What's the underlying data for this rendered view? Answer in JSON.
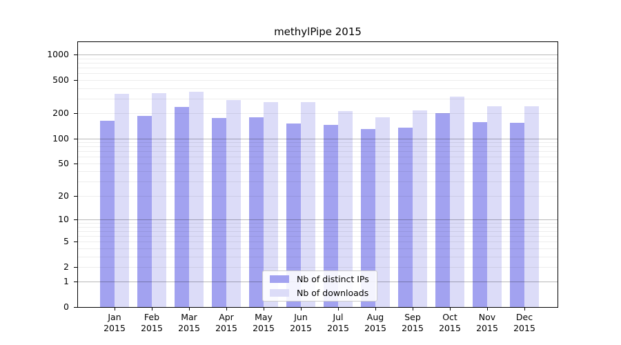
{
  "title": "methylPipe 2015",
  "colors": {
    "background": "#ffffff",
    "spine": "#000000",
    "text": "#000000",
    "ips_bar": "#a2a2f0",
    "downloads_bar": "#dcdcf8",
    "major_grid": "rgba(0,0,0,0.28)",
    "minor_grid": "rgba(0,0,0,0.07)",
    "legend_border": "#cccccc"
  },
  "chart_data": {
    "type": "bar",
    "title": "methylPipe 2015",
    "categories": [
      "Jan",
      "Feb",
      "Mar",
      "Apr",
      "May",
      "Jun",
      "Jul",
      "Aug",
      "Sep",
      "Oct",
      "Nov",
      "Dec"
    ],
    "year": "2015",
    "series": [
      {
        "name": "Nb of distinct IPs",
        "color": "#a2a2f0",
        "values": [
          164,
          185,
          238,
          176,
          180,
          152,
          145,
          131,
          134,
          201,
          156,
          155
        ]
      },
      {
        "name": "Nb of downloads",
        "color": "#dcdcf8",
        "values": [
          342,
          348,
          365,
          290,
          273,
          274,
          214,
          178,
          217,
          317,
          244,
          241
        ]
      }
    ],
    "yscale": "log1p",
    "ylim": [
      0,
      1414
    ],
    "yticks": [
      0,
      1,
      2,
      5,
      10,
      20,
      50,
      100,
      200,
      500,
      1000
    ],
    "ytick_labels": [
      "0",
      "1",
      "2",
      "5",
      "10",
      "20",
      "50",
      "100",
      "200",
      "500",
      "1000"
    ],
    "xtick_labels": [
      "Jan\n2015",
      "Feb\n2015",
      "Mar\n2015",
      "Apr\n2015",
      "May\n2015",
      "Jun\n2015",
      "Jul\n2015",
      "Aug\n2015",
      "Sep\n2015",
      "Oct\n2015",
      "Nov\n2015",
      "Dec\n2015"
    ],
    "grid": {
      "orientation": "horizontal",
      "major_values": [
        1,
        10,
        100,
        1000
      ],
      "minor_values": [
        2,
        3,
        4,
        5,
        6,
        7,
        8,
        9,
        20,
        30,
        40,
        50,
        60,
        70,
        80,
        90,
        200,
        300,
        400,
        500,
        600,
        700,
        800,
        900
      ]
    },
    "legend": {
      "position": "inside-bottom-center",
      "items": [
        "Nb of distinct IPs",
        "Nb of downloads"
      ]
    }
  }
}
